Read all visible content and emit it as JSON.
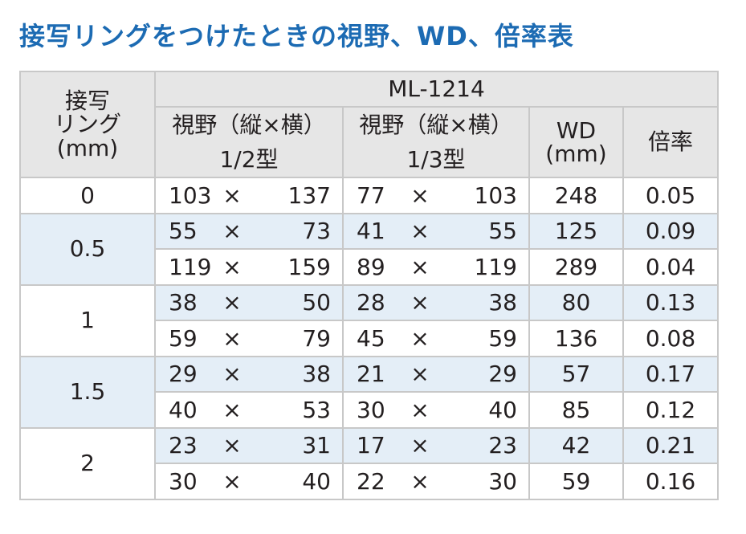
{
  "title": "接写リングをつけたときの視野、WD、倍率表",
  "table": {
    "header": {
      "ring_lines": [
        "接写",
        "リング",
        "(mm)"
      ],
      "model": "ML-1214",
      "fov_label": "視野（縦×横）",
      "fov_half": "1/2型",
      "fov_third": "1/3型",
      "wd_lines": [
        "WD",
        "(mm)"
      ],
      "mag": "倍率"
    },
    "times": "×",
    "groups": [
      {
        "ring": "0",
        "rows": [
          {
            "h2": "103",
            "w2": "137",
            "h3": "77",
            "w3": "103",
            "wd": "248",
            "mag": "0.05"
          }
        ]
      },
      {
        "ring": "0.5",
        "rows": [
          {
            "h2": "55",
            "w2": "73",
            "h3": "41",
            "w3": "55",
            "wd": "125",
            "mag": "0.09"
          },
          {
            "h2": "119",
            "w2": "159",
            "h3": "89",
            "w3": "119",
            "wd": "289",
            "mag": "0.04"
          }
        ]
      },
      {
        "ring": "1",
        "rows": [
          {
            "h2": "38",
            "w2": "50",
            "h3": "28",
            "w3": "38",
            "wd": "80",
            "mag": "0.13"
          },
          {
            "h2": "59",
            "w2": "79",
            "h3": "45",
            "w3": "59",
            "wd": "136",
            "mag": "0.08"
          }
        ]
      },
      {
        "ring": "1.5",
        "rows": [
          {
            "h2": "29",
            "w2": "38",
            "h3": "21",
            "w3": "29",
            "wd": "57",
            "mag": "0.17"
          },
          {
            "h2": "40",
            "w2": "53",
            "h3": "30",
            "w3": "40",
            "wd": "85",
            "mag": "0.12"
          }
        ]
      },
      {
        "ring": "2",
        "rows": [
          {
            "h2": "23",
            "w2": "31",
            "h3": "17",
            "w3": "23",
            "wd": "42",
            "mag": "0.21"
          },
          {
            "h2": "30",
            "w2": "40",
            "h3": "22",
            "w3": "30",
            "wd": "59",
            "mag": "0.16"
          }
        ]
      }
    ]
  }
}
